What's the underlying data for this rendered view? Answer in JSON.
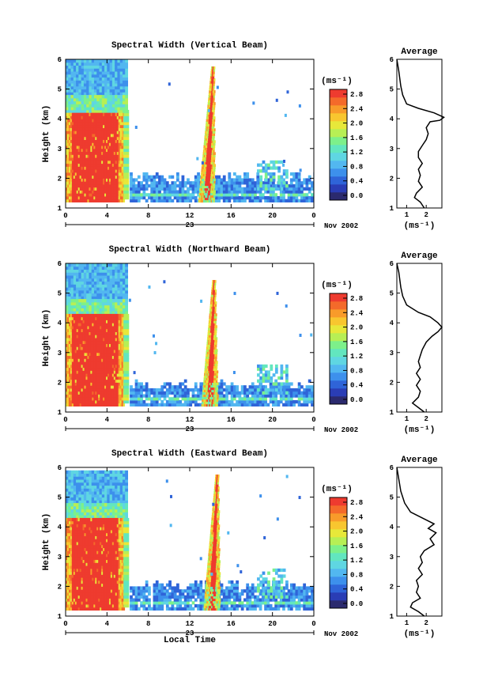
{
  "panels": [
    {
      "title": "Spectral Width (Vertical Beam)",
      "bg_top": 5.8,
      "bg_top_blue": 5.9,
      "bg_red_top": 4.2,
      "spike_hours": [
        14.2,
        13.6
      ],
      "spike_top": 5.7,
      "gap_top": 1.9,
      "profile": [
        [
          0.5,
          6
        ],
        [
          0.6,
          5.6
        ],
        [
          0.7,
          5.1
        ],
        [
          0.8,
          4.8
        ],
        [
          1.0,
          4.5
        ],
        [
          1.6,
          4.35
        ],
        [
          2.4,
          4.2
        ],
        [
          2.9,
          4.05
        ],
        [
          2.7,
          3.95
        ],
        [
          2.2,
          3.9
        ],
        [
          2.0,
          3.7
        ],
        [
          2.1,
          3.5
        ],
        [
          2.0,
          3.3
        ],
        [
          1.8,
          3.1
        ],
        [
          1.6,
          2.9
        ],
        [
          1.6,
          2.7
        ],
        [
          1.8,
          2.5
        ],
        [
          1.6,
          2.3
        ],
        [
          1.7,
          2.1
        ],
        [
          1.6,
          1.9
        ],
        [
          1.8,
          1.7
        ],
        [
          1.5,
          1.5
        ],
        [
          1.4,
          1.35
        ],
        [
          1.7,
          1.2
        ],
        [
          1.9,
          1.0
        ]
      ]
    },
    {
      "title": "Spectral Width (Northward Beam)",
      "bg_top": 5.9,
      "bg_top_blue": 5.9,
      "bg_red_top": 4.3,
      "spike_hours": [
        14.3,
        13.9
      ],
      "spike_top": 5.4,
      "gap_top": 1.8,
      "profile": [
        [
          0.5,
          6
        ],
        [
          0.6,
          5.7
        ],
        [
          0.7,
          5.2
        ],
        [
          0.8,
          4.9
        ],
        [
          1.0,
          4.6
        ],
        [
          1.6,
          4.35
        ],
        [
          2.2,
          4.2
        ],
        [
          2.6,
          4.0
        ],
        [
          2.8,
          3.85
        ],
        [
          2.6,
          3.7
        ],
        [
          2.3,
          3.55
        ],
        [
          2.0,
          3.35
        ],
        [
          1.8,
          3.1
        ],
        [
          1.7,
          2.9
        ],
        [
          1.6,
          2.7
        ],
        [
          1.7,
          2.5
        ],
        [
          1.5,
          2.3
        ],
        [
          1.7,
          2.1
        ],
        [
          1.5,
          1.9
        ],
        [
          1.7,
          1.7
        ],
        [
          1.6,
          1.5
        ],
        [
          1.3,
          1.3
        ],
        [
          1.6,
          1.15
        ],
        [
          1.9,
          1.0
        ]
      ]
    },
    {
      "title": "Spectral Width (Eastward Beam)",
      "bg_top": 5.8,
      "bg_top_blue": 5.8,
      "bg_red_top": 4.3,
      "spike_hours": [
        14.6,
        14.1
      ],
      "spike_top": 5.7,
      "gap_top": 1.9,
      "profile": [
        [
          0.5,
          6
        ],
        [
          0.6,
          5.6
        ],
        [
          0.7,
          5.2
        ],
        [
          0.9,
          4.8
        ],
        [
          1.2,
          4.5
        ],
        [
          1.8,
          4.3
        ],
        [
          2.4,
          4.1
        ],
        [
          2.1,
          3.95
        ],
        [
          2.5,
          3.8
        ],
        [
          2.2,
          3.6
        ],
        [
          2.4,
          3.4
        ],
        [
          1.9,
          3.2
        ],
        [
          1.7,
          3.0
        ],
        [
          1.8,
          2.8
        ],
        [
          1.6,
          2.6
        ],
        [
          1.8,
          2.4
        ],
        [
          1.5,
          2.2
        ],
        [
          1.6,
          2.0
        ],
        [
          1.5,
          1.8
        ],
        [
          1.7,
          1.6
        ],
        [
          1.3,
          1.45
        ],
        [
          1.2,
          1.3
        ],
        [
          1.6,
          1.15
        ],
        [
          1.9,
          1.0
        ]
      ]
    }
  ],
  "common": {
    "x_ticks": [
      "0",
      "4",
      "8",
      "12",
      "16",
      "20",
      "0"
    ],
    "y_ticks": [
      "1",
      "2",
      "3",
      "4",
      "5",
      "6"
    ],
    "y_label": "Height (km)",
    "date_day": "23",
    "date_month": "Nov 2002",
    "x_axis_label": "Local Time",
    "colorbar_unit": "(ms⁻¹)",
    "colorbar_ticks": [
      "2.8",
      "2.4",
      "2.0",
      "1.6",
      "1.2",
      "0.8",
      "0.4",
      "0.0"
    ],
    "avg_title": "Average",
    "avg_ticks": [
      "1",
      "2"
    ],
    "avg_unit": "(ms⁻¹)",
    "colors": [
      "#2b2a6e",
      "#2a3db5",
      "#2f64d8",
      "#3d90ec",
      "#52b7f0",
      "#5fd6e2",
      "#62e6bf",
      "#7df08a",
      "#b7ef55",
      "#e7e83a",
      "#f8c62f",
      "#f89b2a",
      "#f46a2a",
      "#ee3b2f"
    ]
  },
  "chart_data": [
    {
      "type": "heatmap",
      "title": "Spectral Width (Vertical Beam)",
      "xlabel": "23 Nov 2002",
      "ylabel": "Height (km)",
      "xlim": [
        0,
        24
      ],
      "ylim": [
        1,
        6
      ],
      "colorbar_range": [
        0.0,
        2.8
      ],
      "colorbar_unit": "ms-1"
    },
    {
      "type": "line",
      "title": "Average",
      "xlabel": "(ms-1)",
      "ylabel": "Height (km)",
      "ylim": [
        1,
        6
      ],
      "series": [
        {
          "name": "",
          "x": [
            0.5,
            0.6,
            0.7,
            0.8,
            1.0,
            1.6,
            2.4,
            2.9,
            2.7,
            2.2,
            2.0,
            2.1,
            2.0,
            1.8,
            1.6,
            1.6,
            1.8,
            1.6,
            1.7,
            1.6,
            1.8,
            1.5,
            1.4,
            1.7,
            1.9
          ],
          "y": [
            6,
            5.6,
            5.1,
            4.8,
            4.5,
            4.35,
            4.2,
            4.05,
            3.95,
            3.9,
            3.7,
            3.5,
            3.3,
            3.1,
            2.9,
            2.7,
            2.5,
            2.3,
            2.1,
            1.9,
            1.7,
            1.5,
            1.35,
            1.2,
            1.0
          ]
        }
      ]
    },
    {
      "type": "heatmap",
      "title": "Spectral Width (Northward Beam)",
      "xlabel": "23 Nov 2002",
      "ylabel": "Height (km)",
      "xlim": [
        0,
        24
      ],
      "ylim": [
        1,
        6
      ],
      "colorbar_range": [
        0.0,
        2.8
      ],
      "colorbar_unit": "ms-1"
    },
    {
      "type": "line",
      "title": "Average",
      "xlabel": "(ms-1)",
      "ylabel": "Height (km)",
      "ylim": [
        1,
        6
      ],
      "series": [
        {
          "name": "",
          "x": [
            0.5,
            0.6,
            0.7,
            0.8,
            1.0,
            1.6,
            2.2,
            2.6,
            2.8,
            2.6,
            2.3,
            2.0,
            1.8,
            1.7,
            1.6,
            1.7,
            1.5,
            1.7,
            1.5,
            1.7,
            1.6,
            1.3,
            1.6,
            1.9
          ],
          "y": [
            6,
            5.7,
            5.2,
            4.9,
            4.6,
            4.35,
            4.2,
            4.0,
            3.85,
            3.7,
            3.55,
            3.35,
            3.1,
            2.9,
            2.7,
            2.5,
            2.3,
            2.1,
            1.9,
            1.7,
            1.5,
            1.3,
            1.15,
            1.0
          ]
        }
      ]
    },
    {
      "type": "heatmap",
      "title": "Spectral Width (Eastward Beam)",
      "xlabel": "Local Time",
      "ylabel": "Height (km)",
      "xlim": [
        0,
        24
      ],
      "ylim": [
        1,
        6
      ],
      "colorbar_range": [
        0.0,
        2.8
      ],
      "colorbar_unit": "ms-1"
    },
    {
      "type": "line",
      "title": "Average",
      "xlabel": "(ms-1)",
      "ylabel": "Height (km)",
      "ylim": [
        1,
        6
      ],
      "series": [
        {
          "name": "",
          "x": [
            0.5,
            0.6,
            0.7,
            0.9,
            1.2,
            1.8,
            2.4,
            2.1,
            2.5,
            2.2,
            2.4,
            1.9,
            1.7,
            1.8,
            1.6,
            1.8,
            1.5,
            1.6,
            1.5,
            1.7,
            1.3,
            1.2,
            1.6,
            1.9
          ],
          "y": [
            6,
            5.6,
            5.2,
            4.8,
            4.5,
            4.3,
            4.1,
            3.95,
            3.8,
            3.6,
            3.4,
            3.2,
            3.0,
            2.8,
            2.6,
            2.4,
            2.2,
            2.0,
            1.8,
            1.6,
            1.45,
            1.3,
            1.15,
            1.0
          ]
        }
      ]
    }
  ]
}
